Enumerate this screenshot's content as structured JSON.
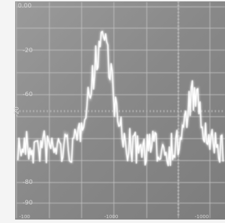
{
  "screen": {
    "top_left_label": "0.00",
    "y_tick_labels": [
      "-20",
      "-60",
      "-80",
      "-90"
    ],
    "side_label": "-20",
    "bottom_labels": [
      "-100",
      "-1000",
      "-1000"
    ]
  },
  "colors": {
    "screen_background": "#8a8a8a",
    "graticule": "#c2c2c2",
    "trace": "#ffffff",
    "bezel": "#f4f4f4"
  }
}
